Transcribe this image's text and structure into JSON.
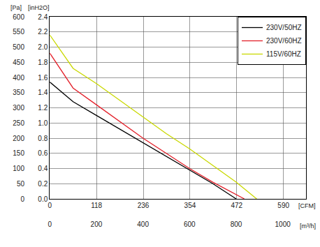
{
  "chart_data": {
    "type": "line",
    "xlabel": "[m³/h]",
    "x2label": "[CFM]",
    "ylabel": "[Pa]",
    "y2label": "[inH2O]",
    "xlim": [
      0,
      1100
    ],
    "xticks": [
      0,
      200,
      400,
      600,
      800,
      1000
    ],
    "x2lim": [
      0,
      647
    ],
    "x2ticks": [
      0,
      118,
      236,
      354,
      472,
      590
    ],
    "ylim": [
      0,
      600
    ],
    "yticks": [
      0,
      50,
      100,
      150,
      200,
      250,
      300,
      350,
      400,
      450,
      500,
      550,
      600
    ],
    "y2lim": [
      0,
      2.4
    ],
    "y2ticks": [
      {
        "value": 0,
        "label": "0.0"
      },
      {
        "value": 0.2,
        "label": "0.2"
      },
      {
        "value": 0.4,
        "label": "0.4"
      },
      {
        "value": 0.6,
        "label": "0.6"
      },
      {
        "value": 0.8,
        "label": "0.8"
      },
      {
        "value": 1.0,
        "label": "1.0"
      },
      {
        "value": 1.2,
        "label": "1.2"
      },
      {
        "value": 1.4,
        "label": "1.4"
      },
      {
        "value": 1.6,
        "label": "1.6"
      },
      {
        "value": 1.8,
        "label": "1.8"
      },
      {
        "value": 2.0,
        "label": "2.0"
      },
      {
        "value": 2.2,
        "label": "2.2"
      },
      {
        "value": 2.4,
        "label": "2.4"
      }
    ],
    "grid": true,
    "legend": "top right",
    "series": [
      {
        "name": "230V/50HZ",
        "color": "#000000",
        "x": [
          0,
          100,
          200,
          300,
          400,
          500,
          600,
          700,
          800
        ],
        "values": [
          385,
          320,
          275,
          230,
          185,
          140,
          95,
          50,
          0
        ]
      },
      {
        "name": "230V/60HZ",
        "color": "#e3202a",
        "x": [
          0,
          100,
          200,
          300,
          400,
          500,
          600,
          700,
          800,
          835
        ],
        "values": [
          480,
          365,
          310,
          255,
          200,
          150,
          100,
          55,
          15,
          0
        ]
      },
      {
        "name": "115V/60HZ",
        "color": "#c9d800",
        "x": [
          0,
          100,
          200,
          300,
          400,
          500,
          600,
          700,
          800,
          888
        ],
        "values": [
          540,
          430,
          380,
          325,
          270,
          215,
          165,
          110,
          55,
          0
        ]
      }
    ]
  }
}
